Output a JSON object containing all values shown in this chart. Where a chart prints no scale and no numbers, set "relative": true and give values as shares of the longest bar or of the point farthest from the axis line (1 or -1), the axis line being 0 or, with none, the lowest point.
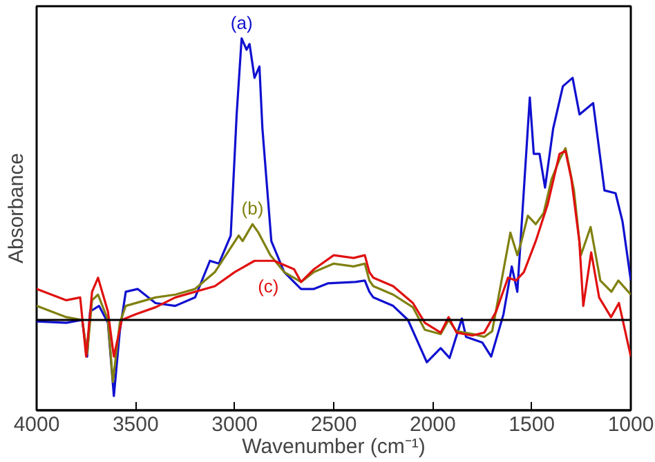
{
  "chart_data": {
    "type": "line",
    "relative": true,
    "xlabel": "Wavenumber (cm⁻¹)",
    "ylabel": "Absorbance",
    "xlim": [
      4000,
      1000
    ],
    "xticks": [
      4000,
      3500,
      3000,
      2500,
      2000,
      1500,
      1000
    ],
    "grid": false,
    "line_style": "solid",
    "marker": "none",
    "annotations": [
      "(a)",
      "(b)",
      "(c)"
    ],
    "series": [
      {
        "color": "#1010d0",
        "x": [
          4000,
          3850,
          3770,
          3745,
          3730,
          3685,
          3640,
          3610,
          3580,
          3550,
          3490,
          3400,
          3300,
          3200,
          3125,
          3080,
          3020,
          2990,
          2965,
          2940,
          2925,
          2900,
          2875,
          2860,
          2815,
          2750,
          2665,
          2600,
          2530,
          2390,
          2343,
          2320,
          2300,
          2200,
          2125,
          2030,
          1960,
          1915,
          1853,
          1832,
          1750,
          1705,
          1643,
          1601,
          1573,
          1510,
          1490,
          1461,
          1433,
          1392,
          1343,
          1294,
          1259,
          1190,
          1133,
          1077,
          1042,
          1000
        ],
        "values": [
          -0.005,
          -0.01,
          0,
          -0.13,
          0.03,
          0.05,
          -0.01,
          -0.27,
          -0.04,
          0.1,
          0.11,
          0.06,
          0.05,
          0.08,
          0.21,
          0.2,
          0.3,
          0.73,
          1.0,
          0.96,
          0.98,
          0.86,
          0.9,
          0.68,
          0.28,
          0.17,
          0.11,
          0.11,
          0.13,
          0.135,
          0.14,
          0.1,
          0.08,
          0.05,
          0,
          -0.15,
          -0.1,
          -0.135,
          0.005,
          -0.06,
          -0.08,
          -0.13,
          0.02,
          0.19,
          0.1,
          0.79,
          0.59,
          0.59,
          0.47,
          0.68,
          0.83,
          0.86,
          0.73,
          0.77,
          0.46,
          0.45,
          0.35,
          0.14
        ]
      },
      {
        "color": "#808010",
        "x": [
          4000,
          3850,
          3770,
          3745,
          3720,
          3690,
          3640,
          3615,
          3580,
          3550,
          3400,
          3300,
          3200,
          3100,
          2980,
          2960,
          2910,
          2880,
          2820,
          2750,
          2665,
          2600,
          2500,
          2400,
          2343,
          2320,
          2300,
          2200,
          2100,
          2040,
          1960,
          1920,
          1880,
          1800,
          1740,
          1700,
          1608,
          1573,
          1552,
          1520,
          1480,
          1440,
          1400,
          1360,
          1330,
          1287,
          1252,
          1203,
          1154,
          1098,
          1063,
          1000
        ],
        "values": [
          0.05,
          0.01,
          0,
          -0.12,
          0.07,
          0.09,
          0,
          -0.22,
          -0.01,
          0.05,
          0.08,
          0.09,
          0.11,
          0.17,
          0.3,
          0.28,
          0.34,
          0.31,
          0.23,
          0.17,
          0.135,
          0.17,
          0.2,
          0.19,
          0.2,
          0.14,
          0.12,
          0.09,
          0.045,
          -0.035,
          -0.05,
          0,
          -0.04,
          -0.05,
          -0.06,
          -0.04,
          0.31,
          0.23,
          0.28,
          0.37,
          0.34,
          0.38,
          0.5,
          0.57,
          0.61,
          0.46,
          0.23,
          0.33,
          0.14,
          0.1,
          0.14,
          0.09
        ]
      },
      {
        "color": "#e01010",
        "x": [
          4000,
          3850,
          3780,
          3750,
          3720,
          3690,
          3640,
          3610,
          3570,
          3500,
          3400,
          3300,
          3100,
          3000,
          2900,
          2800,
          2700,
          2665,
          2600,
          2500,
          2400,
          2343,
          2320,
          2300,
          2200,
          2100,
          2040,
          1960,
          1920,
          1880,
          1800,
          1740,
          1680,
          1620,
          1580,
          1540,
          1480,
          1420,
          1360,
          1330,
          1300,
          1260,
          1240,
          1200,
          1160,
          1100,
          1060,
          1000
        ],
        "values": [
          0.11,
          0.07,
          0.08,
          -0.13,
          0.1,
          0.15,
          0.03,
          -0.13,
          0,
          0.02,
          0.045,
          0.08,
          0.12,
          0.17,
          0.21,
          0.21,
          0.18,
          0.135,
          0.18,
          0.23,
          0.22,
          0.23,
          0.17,
          0.15,
          0.12,
          0.06,
          -0.01,
          -0.045,
          0.01,
          -0.045,
          -0.055,
          -0.045,
          0.03,
          0.15,
          0.14,
          0.17,
          0.28,
          0.41,
          0.59,
          0.6,
          0.5,
          0.28,
          0.05,
          0.24,
          0.08,
          0.01,
          0.06,
          -0.13
        ]
      }
    ]
  }
}
